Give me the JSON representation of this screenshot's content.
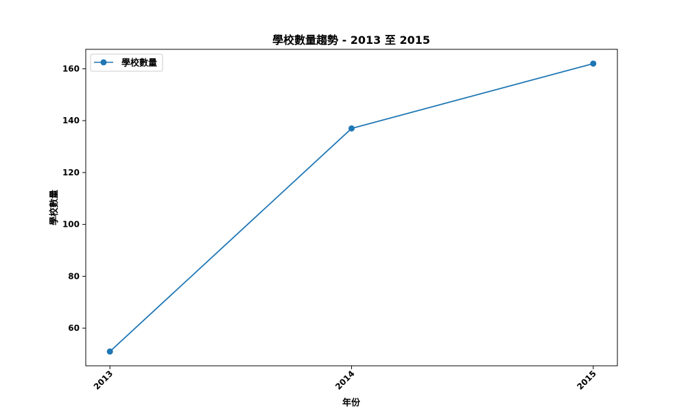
{
  "chart_data": {
    "type": "line",
    "title": "學校數量趨勢 - 2013 至 2015",
    "xlabel": "年份",
    "ylabel": "學校數量",
    "categories": [
      "2013",
      "2014",
      "2015"
    ],
    "series": [
      {
        "name": "學校數量",
        "values": [
          51,
          137,
          162
        ],
        "color": "#1f77b4"
      }
    ],
    "y_ticks": [
      60,
      80,
      100,
      120,
      140,
      160
    ],
    "y_tick_labels": [
      "60",
      "80",
      "100",
      "120",
      "140",
      "160"
    ],
    "ylim": [
      45.5,
      167.5
    ],
    "grid": false,
    "legend_position": "top-left",
    "marker": "circle"
  }
}
